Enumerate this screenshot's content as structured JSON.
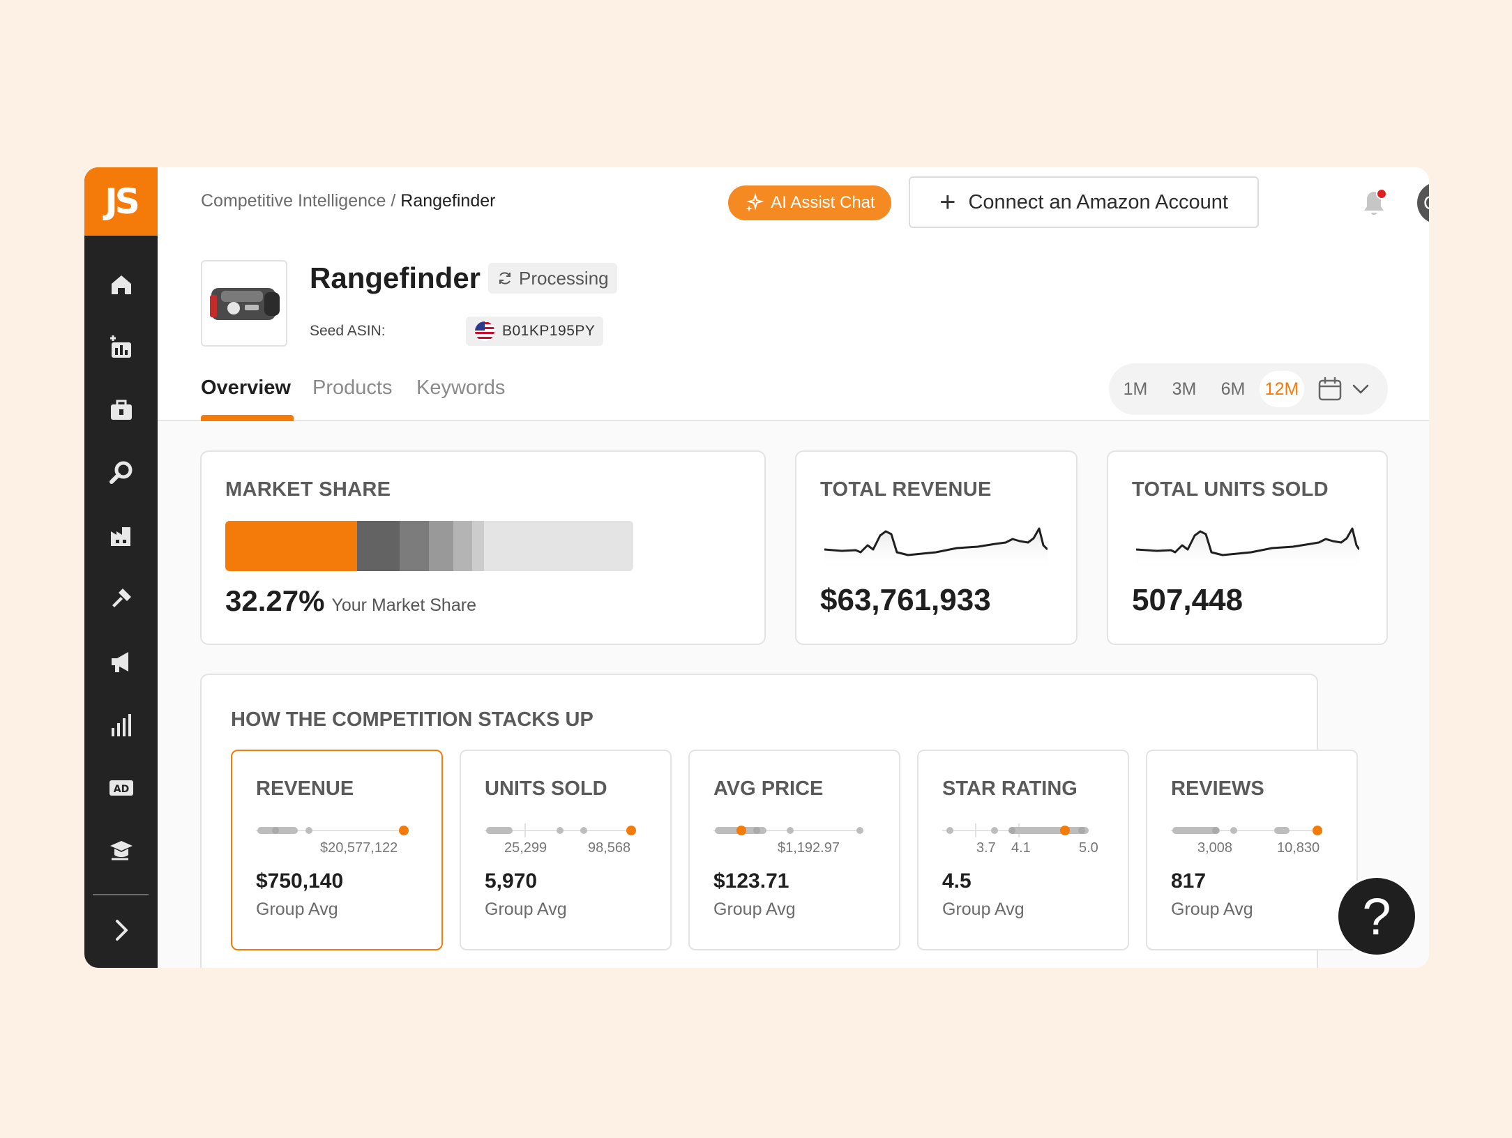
{
  "brand": {
    "logo_text": "JS",
    "accent": "#f47b0a"
  },
  "sidebar": {
    "items": [
      {
        "icon": "home-icon"
      },
      {
        "icon": "product-analytics-icon"
      },
      {
        "icon": "toolbox-icon"
      },
      {
        "icon": "search-icon"
      },
      {
        "icon": "factory-icon"
      },
      {
        "icon": "keyword-tool-icon"
      },
      {
        "icon": "megaphone-icon"
      },
      {
        "icon": "bar-chart-icon"
      },
      {
        "icon": "ad-icon"
      },
      {
        "icon": "academy-icon"
      }
    ],
    "expand_icon": "chevron-right-icon"
  },
  "header": {
    "breadcrumb_parent": "Competitive Intelligence /",
    "breadcrumb_current": "Rangefinder",
    "ai_button": "AI Assist Chat",
    "connect_button": "Connect an Amazon Account",
    "avatar_initials": "CM"
  },
  "product": {
    "title": "Rangefinder",
    "status": "Processing",
    "seed_label": "Seed ASIN:",
    "asin": "B01KP195PY"
  },
  "tabs": [
    {
      "label": "Overview",
      "active": true
    },
    {
      "label": "Products",
      "active": false
    },
    {
      "label": "Keywords",
      "active": false
    }
  ],
  "periods": [
    {
      "label": "1M",
      "active": false
    },
    {
      "label": "3M",
      "active": false
    },
    {
      "label": "6M",
      "active": false
    },
    {
      "label": "12M",
      "active": true
    }
  ],
  "market_share": {
    "title": "MARKET SHARE",
    "percent": "32.27%",
    "label": "Your Market Share",
    "segments": [
      {
        "share": 0.3227,
        "color": "#f47b0a"
      },
      {
        "share": 0.105,
        "color": "#636363"
      },
      {
        "share": 0.072,
        "color": "#7c7c7c"
      },
      {
        "share": 0.06,
        "color": "#999999"
      },
      {
        "share": 0.045,
        "color": "#b4b4b4"
      },
      {
        "share": 0.03,
        "color": "#cccccc"
      },
      {
        "share": 0.3653,
        "color": "#e4e4e4"
      }
    ]
  },
  "total_revenue": {
    "title": "TOTAL REVENUE",
    "value": "$63,761,933"
  },
  "total_units": {
    "title": "TOTAL UNITS SOLD",
    "value": "507,448"
  },
  "competition": {
    "title": "HOW THE COMPETITION STACKS UP",
    "metrics": [
      {
        "title": "REVENUE",
        "value": "$750,140",
        "sub": "Group Avg",
        "ticks": [
          "$20,577,122"
        ],
        "selected": true
      },
      {
        "title": "UNITS SOLD",
        "value": "5,970",
        "sub": "Group Avg",
        "ticks": [
          "25,299",
          "98,568"
        ],
        "selected": false
      },
      {
        "title": "AVG PRICE",
        "value": "$123.71",
        "sub": "Group Avg",
        "ticks": [
          "$1,192.97"
        ],
        "selected": false
      },
      {
        "title": "STAR RATING",
        "value": "4.5",
        "sub": "Group Avg",
        "ticks": [
          "3.7",
          "4.1",
          "5.0"
        ],
        "selected": false
      },
      {
        "title": "REVIEWS",
        "value": "817",
        "sub": "Group Avg",
        "ticks": [
          "3,008",
          "10,830"
        ],
        "selected": false
      }
    ]
  },
  "help": {
    "label": "?"
  }
}
